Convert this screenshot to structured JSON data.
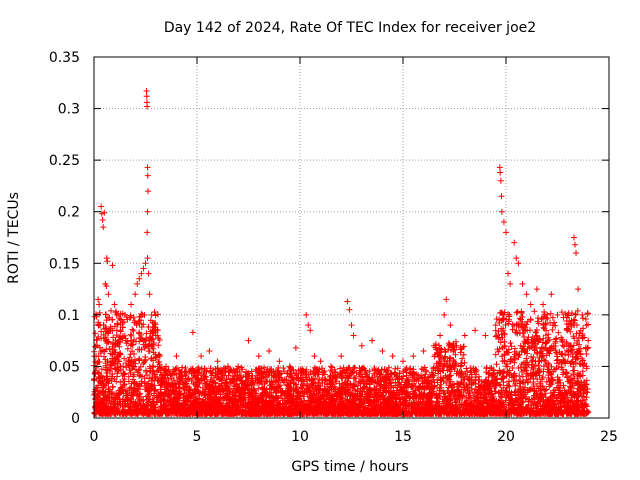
{
  "chart_data": {
    "type": "scatter",
    "title": "Day 142 of 2024, Rate Of TEC Index for receiver joe2",
    "xlabel": "GPS time / hours",
    "ylabel": "ROTI / TECUs",
    "xlim": [
      0,
      25
    ],
    "ylim": [
      0,
      0.35
    ],
    "xticks": [
      0,
      5,
      10,
      15,
      20,
      25
    ],
    "xtick_labels": [
      "0",
      "5",
      "10",
      "15",
      "20",
      "25"
    ],
    "yticks": [
      0,
      0.05,
      0.1,
      0.15,
      0.2,
      0.25,
      0.3,
      0.35
    ],
    "ytick_labels": [
      "0",
      "0.05",
      "0.1",
      "0.15",
      "0.2",
      "0.25",
      "0.3",
      "0.35"
    ],
    "grid": true,
    "marker": "+",
    "color": "#ff0000",
    "series": [
      {
        "name": "ROTI",
        "points": [
          [
            0.35,
            0.205
          ],
          [
            0.38,
            0.198
          ],
          [
            0.42,
            0.192
          ],
          [
            0.45,
            0.185
          ],
          [
            0.5,
            0.199
          ],
          [
            0.55,
            0.13
          ],
          [
            0.6,
            0.128
          ],
          [
            0.62,
            0.155
          ],
          [
            0.65,
            0.152
          ],
          [
            0.7,
            0.12
          ],
          [
            0.2,
            0.115
          ],
          [
            0.25,
            0.11
          ],
          [
            0.3,
            0.09
          ],
          [
            0.15,
            0.07
          ],
          [
            0.1,
            0.06
          ],
          [
            0.9,
            0.148
          ],
          [
            1.0,
            0.11
          ],
          [
            1.1,
            0.1
          ],
          [
            1.3,
            0.095
          ],
          [
            1.5,
            0.1
          ],
          [
            1.8,
            0.11
          ],
          [
            2.0,
            0.12
          ],
          [
            2.1,
            0.13
          ],
          [
            2.2,
            0.135
          ],
          [
            2.3,
            0.14
          ],
          [
            2.4,
            0.145
          ],
          [
            2.5,
            0.15
          ],
          [
            2.6,
            0.155
          ],
          [
            2.65,
            0.14
          ],
          [
            2.7,
            0.12
          ],
          [
            2.55,
            0.317
          ],
          [
            2.56,
            0.312
          ],
          [
            2.57,
            0.306
          ],
          [
            2.58,
            0.302
          ],
          [
            2.6,
            0.243
          ],
          [
            2.61,
            0.235
          ],
          [
            2.62,
            0.22
          ],
          [
            2.6,
            0.2
          ],
          [
            2.58,
            0.18
          ],
          [
            2.8,
            0.1
          ],
          [
            3.0,
            0.08
          ],
          [
            3.2,
            0.06
          ],
          [
            3.5,
            0.05
          ],
          [
            4.0,
            0.06
          ],
          [
            4.8,
            0.083
          ],
          [
            5.2,
            0.06
          ],
          [
            5.6,
            0.065
          ],
          [
            6.0,
            0.055
          ],
          [
            6.5,
            0.05
          ],
          [
            7.0,
            0.05
          ],
          [
            7.5,
            0.075
          ],
          [
            8.0,
            0.06
          ],
          [
            8.5,
            0.065
          ],
          [
            9.0,
            0.055
          ],
          [
            9.5,
            0.05
          ],
          [
            9.8,
            0.068
          ],
          [
            10.3,
            0.1
          ],
          [
            10.4,
            0.09
          ],
          [
            10.5,
            0.085
          ],
          [
            10.7,
            0.06
          ],
          [
            11.0,
            0.055
          ],
          [
            11.5,
            0.05
          ],
          [
            12.0,
            0.06
          ],
          [
            12.3,
            0.113
          ],
          [
            12.4,
            0.105
          ],
          [
            12.5,
            0.09
          ],
          [
            12.6,
            0.08
          ],
          [
            13.0,
            0.07
          ],
          [
            13.5,
            0.075
          ],
          [
            14.0,
            0.065
          ],
          [
            14.5,
            0.06
          ],
          [
            15.0,
            0.055
          ],
          [
            15.5,
            0.06
          ],
          [
            16.0,
            0.065
          ],
          [
            16.5,
            0.07
          ],
          [
            16.8,
            0.08
          ],
          [
            17.0,
            0.1
          ],
          [
            17.1,
            0.115
          ],
          [
            17.3,
            0.09
          ],
          [
            17.6,
            0.07
          ],
          [
            18.0,
            0.08
          ],
          [
            18.5,
            0.085
          ],
          [
            19.0,
            0.08
          ],
          [
            19.5,
            0.09
          ],
          [
            19.7,
            0.243
          ],
          [
            19.72,
            0.238
          ],
          [
            19.75,
            0.23
          ],
          [
            19.78,
            0.215
          ],
          [
            19.8,
            0.2
          ],
          [
            19.9,
            0.19
          ],
          [
            20.0,
            0.18
          ],
          [
            20.1,
            0.14
          ],
          [
            20.2,
            0.13
          ],
          [
            20.4,
            0.17
          ],
          [
            20.5,
            0.155
          ],
          [
            20.6,
            0.15
          ],
          [
            20.8,
            0.13
          ],
          [
            21.0,
            0.12
          ],
          [
            21.2,
            0.11
          ],
          [
            21.5,
            0.125
          ],
          [
            21.8,
            0.11
          ],
          [
            22.0,
            0.1
          ],
          [
            22.2,
            0.12
          ],
          [
            22.5,
            0.1
          ],
          [
            23.0,
            0.1
          ],
          [
            23.3,
            0.175
          ],
          [
            23.35,
            0.168
          ],
          [
            23.4,
            0.16
          ],
          [
            23.5,
            0.125
          ],
          [
            23.7,
            0.1
          ],
          [
            23.9,
            0.09
          ]
        ]
      }
    ]
  }
}
